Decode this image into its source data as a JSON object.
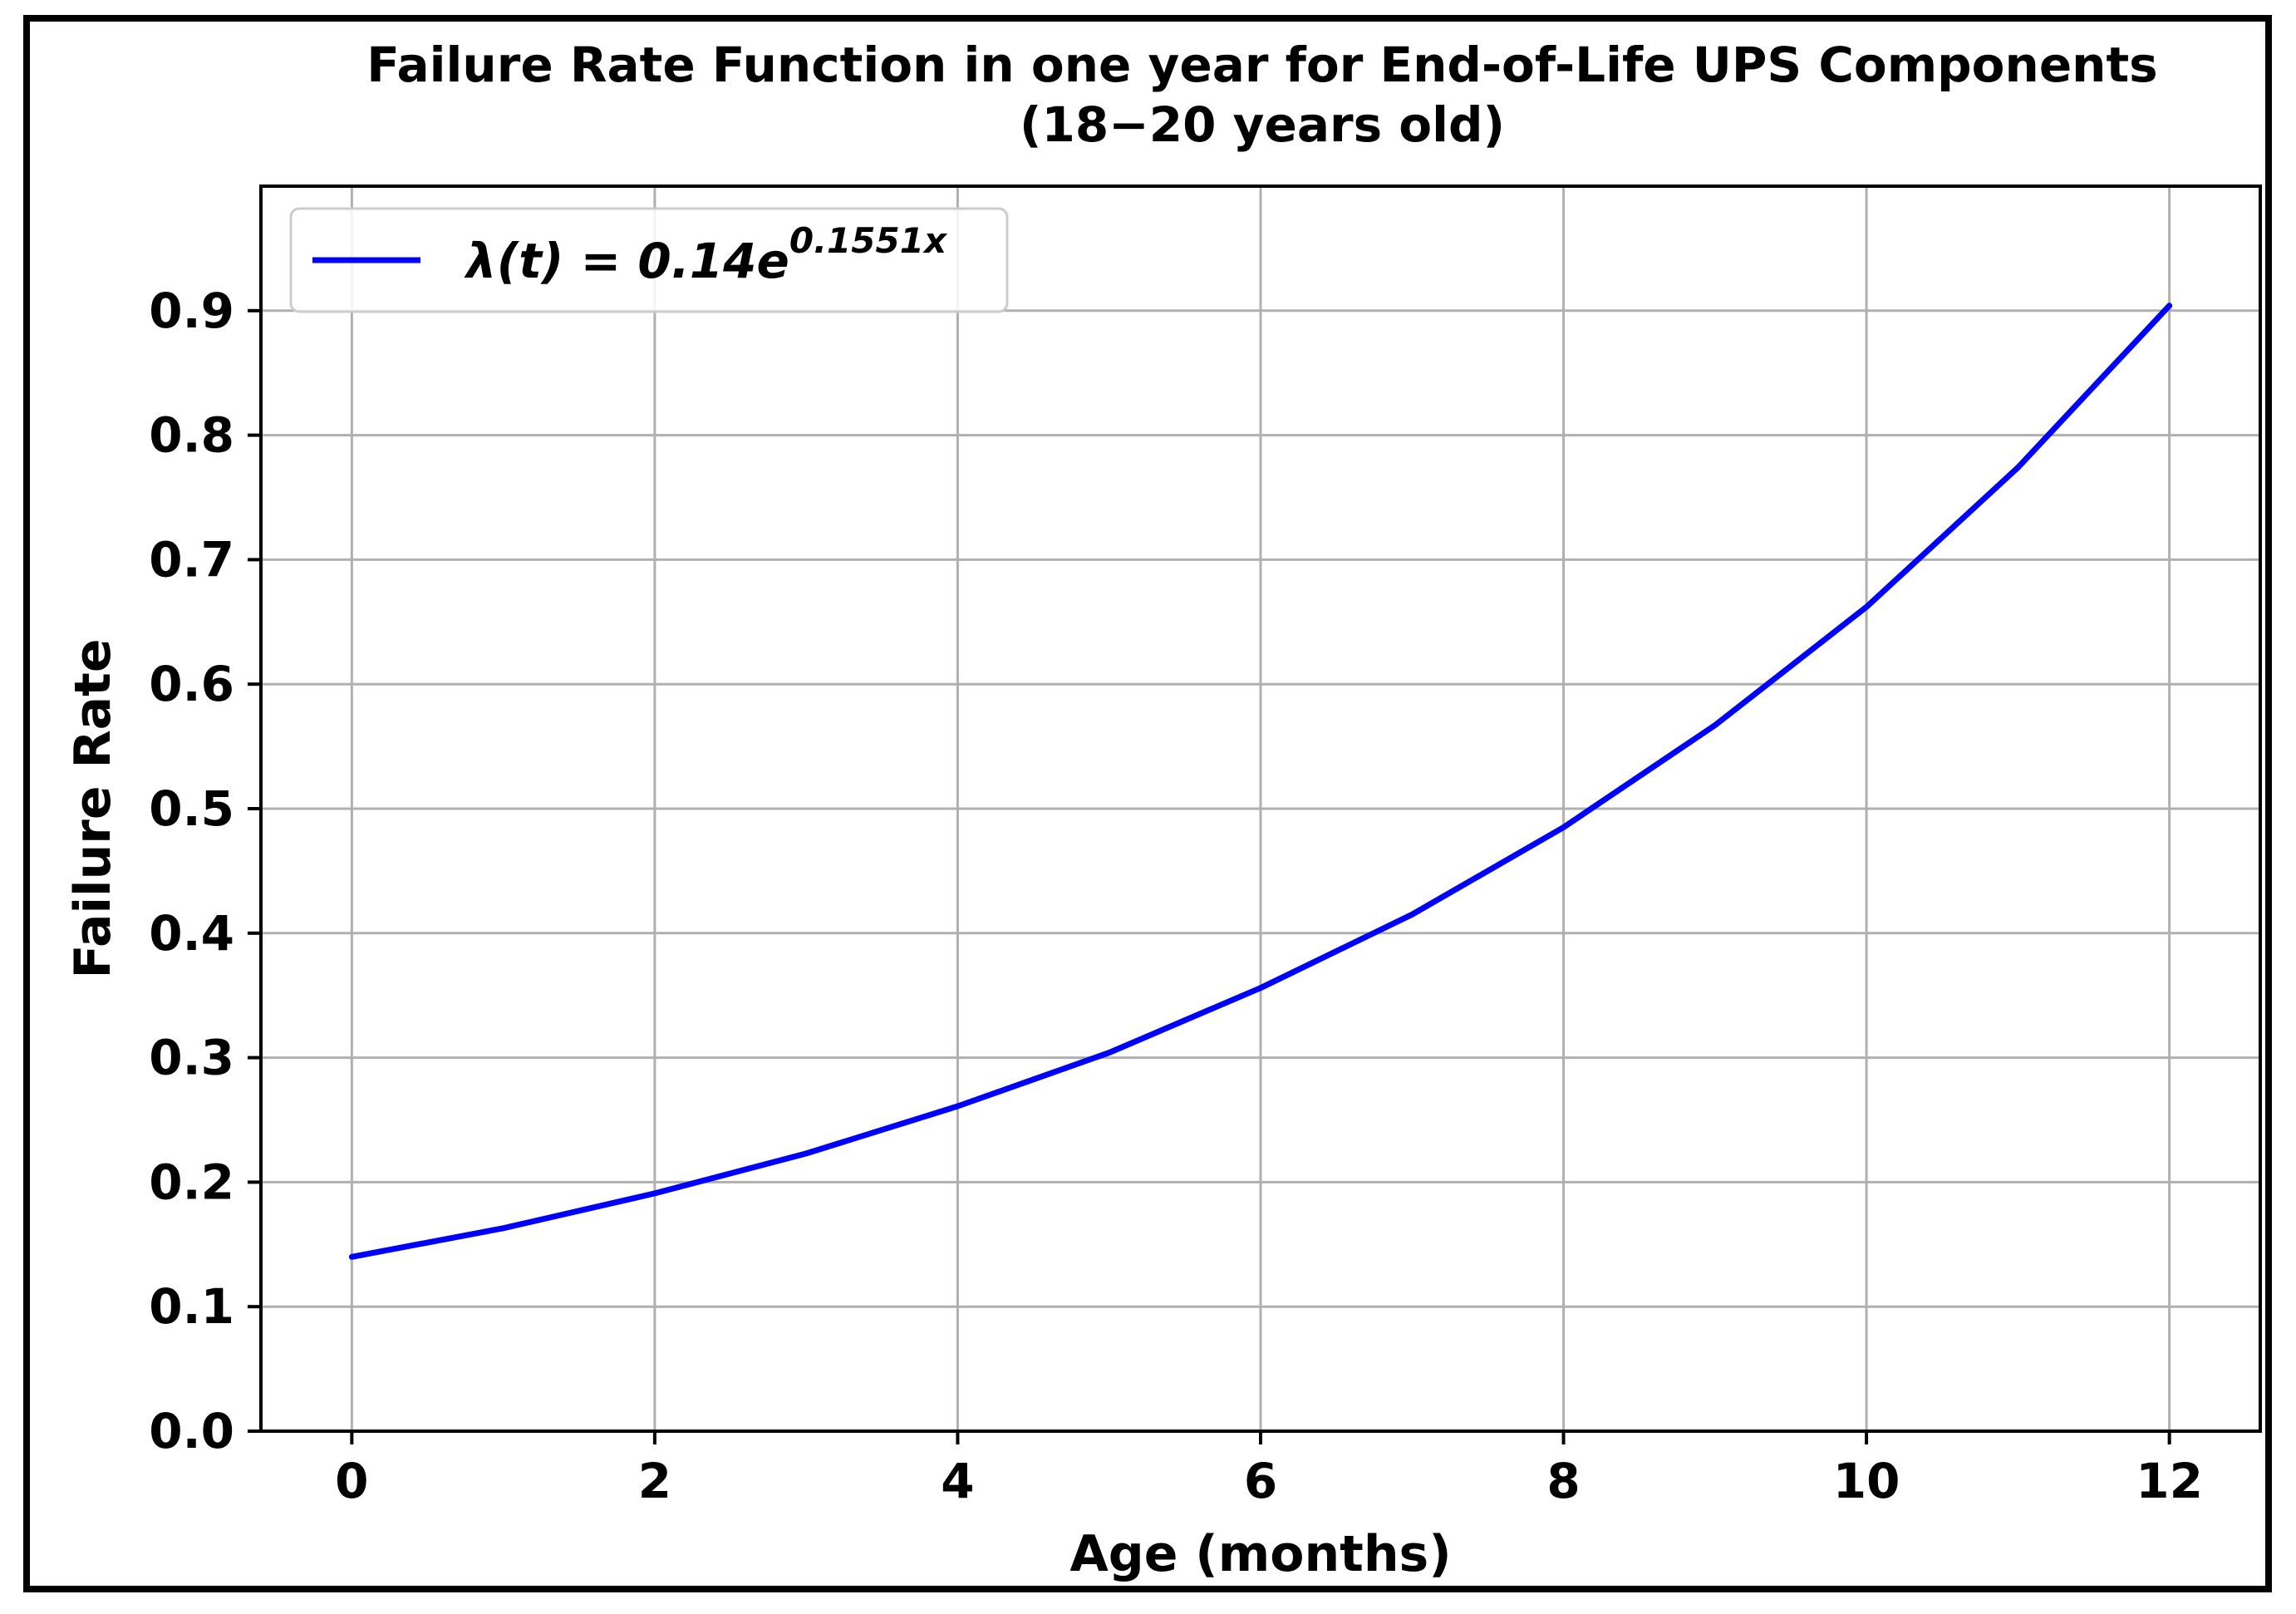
{
  "chart_data": {
    "type": "line",
    "title": "Failure Rate Function in one year for End-of-Life UPS Components",
    "subtitle": "(18−20 years old)",
    "xlabel": "Age (months)",
    "ylabel": "Failure Rate",
    "xlim": [
      -0.6,
      12.6
    ],
    "ylim": [
      0.0,
      1.0
    ],
    "xticks": [
      0,
      2,
      4,
      6,
      8,
      10,
      12
    ],
    "xtick_labels": [
      "0",
      "2",
      "4",
      "6",
      "8",
      "10",
      "12"
    ],
    "yticks": [
      0.0,
      0.1,
      0.2,
      0.3,
      0.4,
      0.5,
      0.6,
      0.7,
      0.8,
      0.9
    ],
    "ytick_labels": [
      "0.0",
      "0.1",
      "0.2",
      "0.3",
      "0.4",
      "0.5",
      "0.6",
      "0.7",
      "0.8",
      "0.9"
    ],
    "grid": true,
    "legend_position": "upper-left",
    "series": [
      {
        "name": "λ(t) = 0.14e^0.1551x",
        "legend_main": "λ(t) = 0.14e",
        "legend_exponent": "0.1551x",
        "color": "#0000ff",
        "x": [
          0,
          1,
          2,
          3,
          4,
          5,
          6,
          7,
          8,
          9,
          10,
          11,
          12
        ],
        "y": [
          0.14,
          0.163,
          0.191,
          0.223,
          0.261,
          0.304,
          0.356,
          0.415,
          0.485,
          0.567,
          0.662,
          0.774,
          0.904
        ]
      }
    ]
  }
}
